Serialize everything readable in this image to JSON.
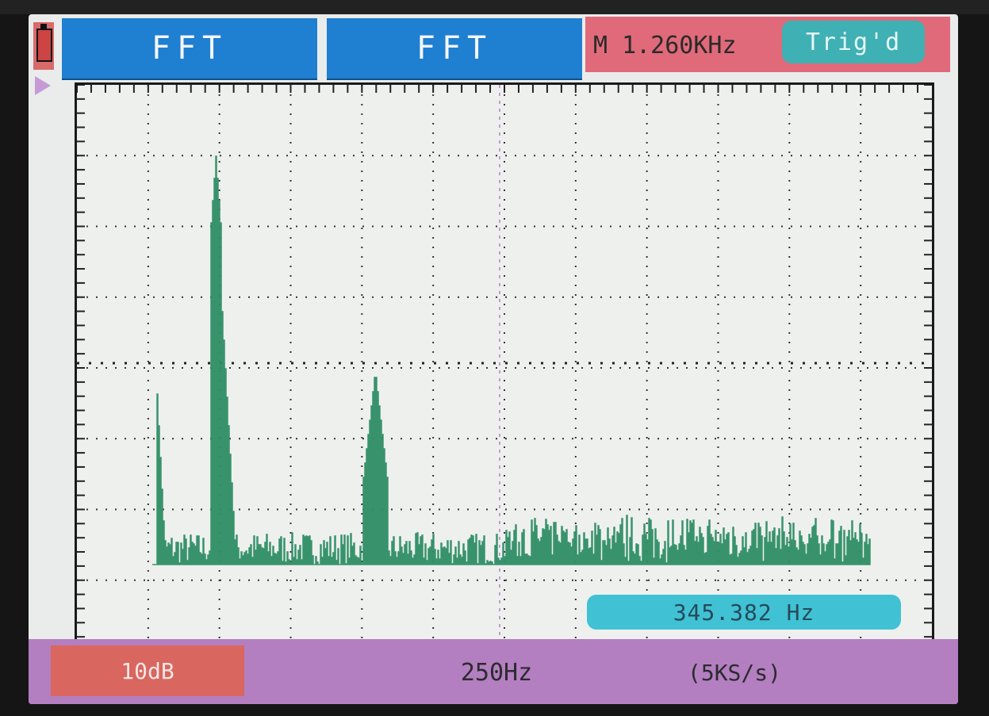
{
  "header": {
    "channel1_label": "FFT",
    "channel2_label": "FFT",
    "timebase_prefix": "M",
    "timebase_value": "1.260KHz",
    "trigger_status": "Trig'd"
  },
  "cursor": {
    "readout": "345.382 Hz"
  },
  "footer": {
    "vertical_scale": "10dB",
    "horizontal_scale": "250Hz",
    "sample_rate": "(5KS/s)"
  },
  "colors": {
    "trace": "#2f8f66",
    "channel_tab": "#1f7fd0",
    "timebase_bar": "#e06a7a",
    "trig_badge": "#3fb0b3",
    "readout_badge": "#41c2d4",
    "footer_bar": "#b37fc0",
    "scale_badge": "#d9665f",
    "marker": "#c69ad6"
  }
}
